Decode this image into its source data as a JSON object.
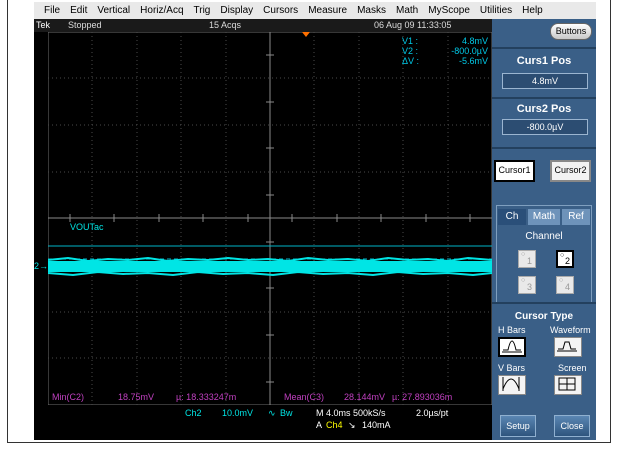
{
  "menu": [
    "File",
    "Edit",
    "Vertical",
    "Horiz/Acq",
    "Trig",
    "Display",
    "Cursors",
    "Measure",
    "Masks",
    "Math",
    "MyScope",
    "Utilities",
    "Help"
  ],
  "status": {
    "brand": "Tek",
    "state": "Stopped",
    "acqs": "15 Acqs",
    "datetime": "06 Aug 09 11:33:05"
  },
  "readout": {
    "v1_label": "V1 :",
    "v1_value": "4.8mV",
    "v2_label": "V2 :",
    "v2_value": "-800.0µV",
    "dv_label": "ΔV :",
    "dv_value": "-5.6mV"
  },
  "waveform_label": "VOUTac",
  "channel_marker": "2",
  "measurements": {
    "min_label": "Min(C2)",
    "min_value": "18.75mV",
    "mu1": "µ: 18.333247m",
    "mean_label": "Mean(C3)",
    "mean_value": "28.144mV",
    "mu2": "µ: 27.893036m"
  },
  "bottom": {
    "ch2": "Ch2",
    "scale": "10.0mV",
    "bw": "Bw",
    "timebase": "M 4.0ms 500kS/s",
    "sample": "2.0µs/pt",
    "trig_prefix": "A",
    "trig_ch": "Ch4",
    "trig_level": "140mA"
  },
  "panel": {
    "buttons_label": "Buttons",
    "cursor1_pos_title": "Curs1 Pos",
    "cursor1_pos_value": "4.8mV",
    "cursor2_pos_title": "Curs2 Pos",
    "cursor2_pos_value": "-800.0µV",
    "cursor1": "Cursor1",
    "cursor2": "Cursor2",
    "tabs": [
      "Ch",
      "Math",
      "Ref"
    ],
    "channel_title": "Channel",
    "channels": [
      "1",
      "2",
      "3",
      "4"
    ],
    "cursor_type_title": "Cursor Type",
    "hbars": "H Bars",
    "waveform": "Waveform",
    "vbars": "V Bars",
    "screen": "Screen",
    "setup": "Setup",
    "close": "Close"
  },
  "colors": {
    "trace": "#00e5e5",
    "grid": "#6e6e6e",
    "cursor": "#00b4c8",
    "meas": "#c040c0",
    "panel": "#3a5f87"
  }
}
